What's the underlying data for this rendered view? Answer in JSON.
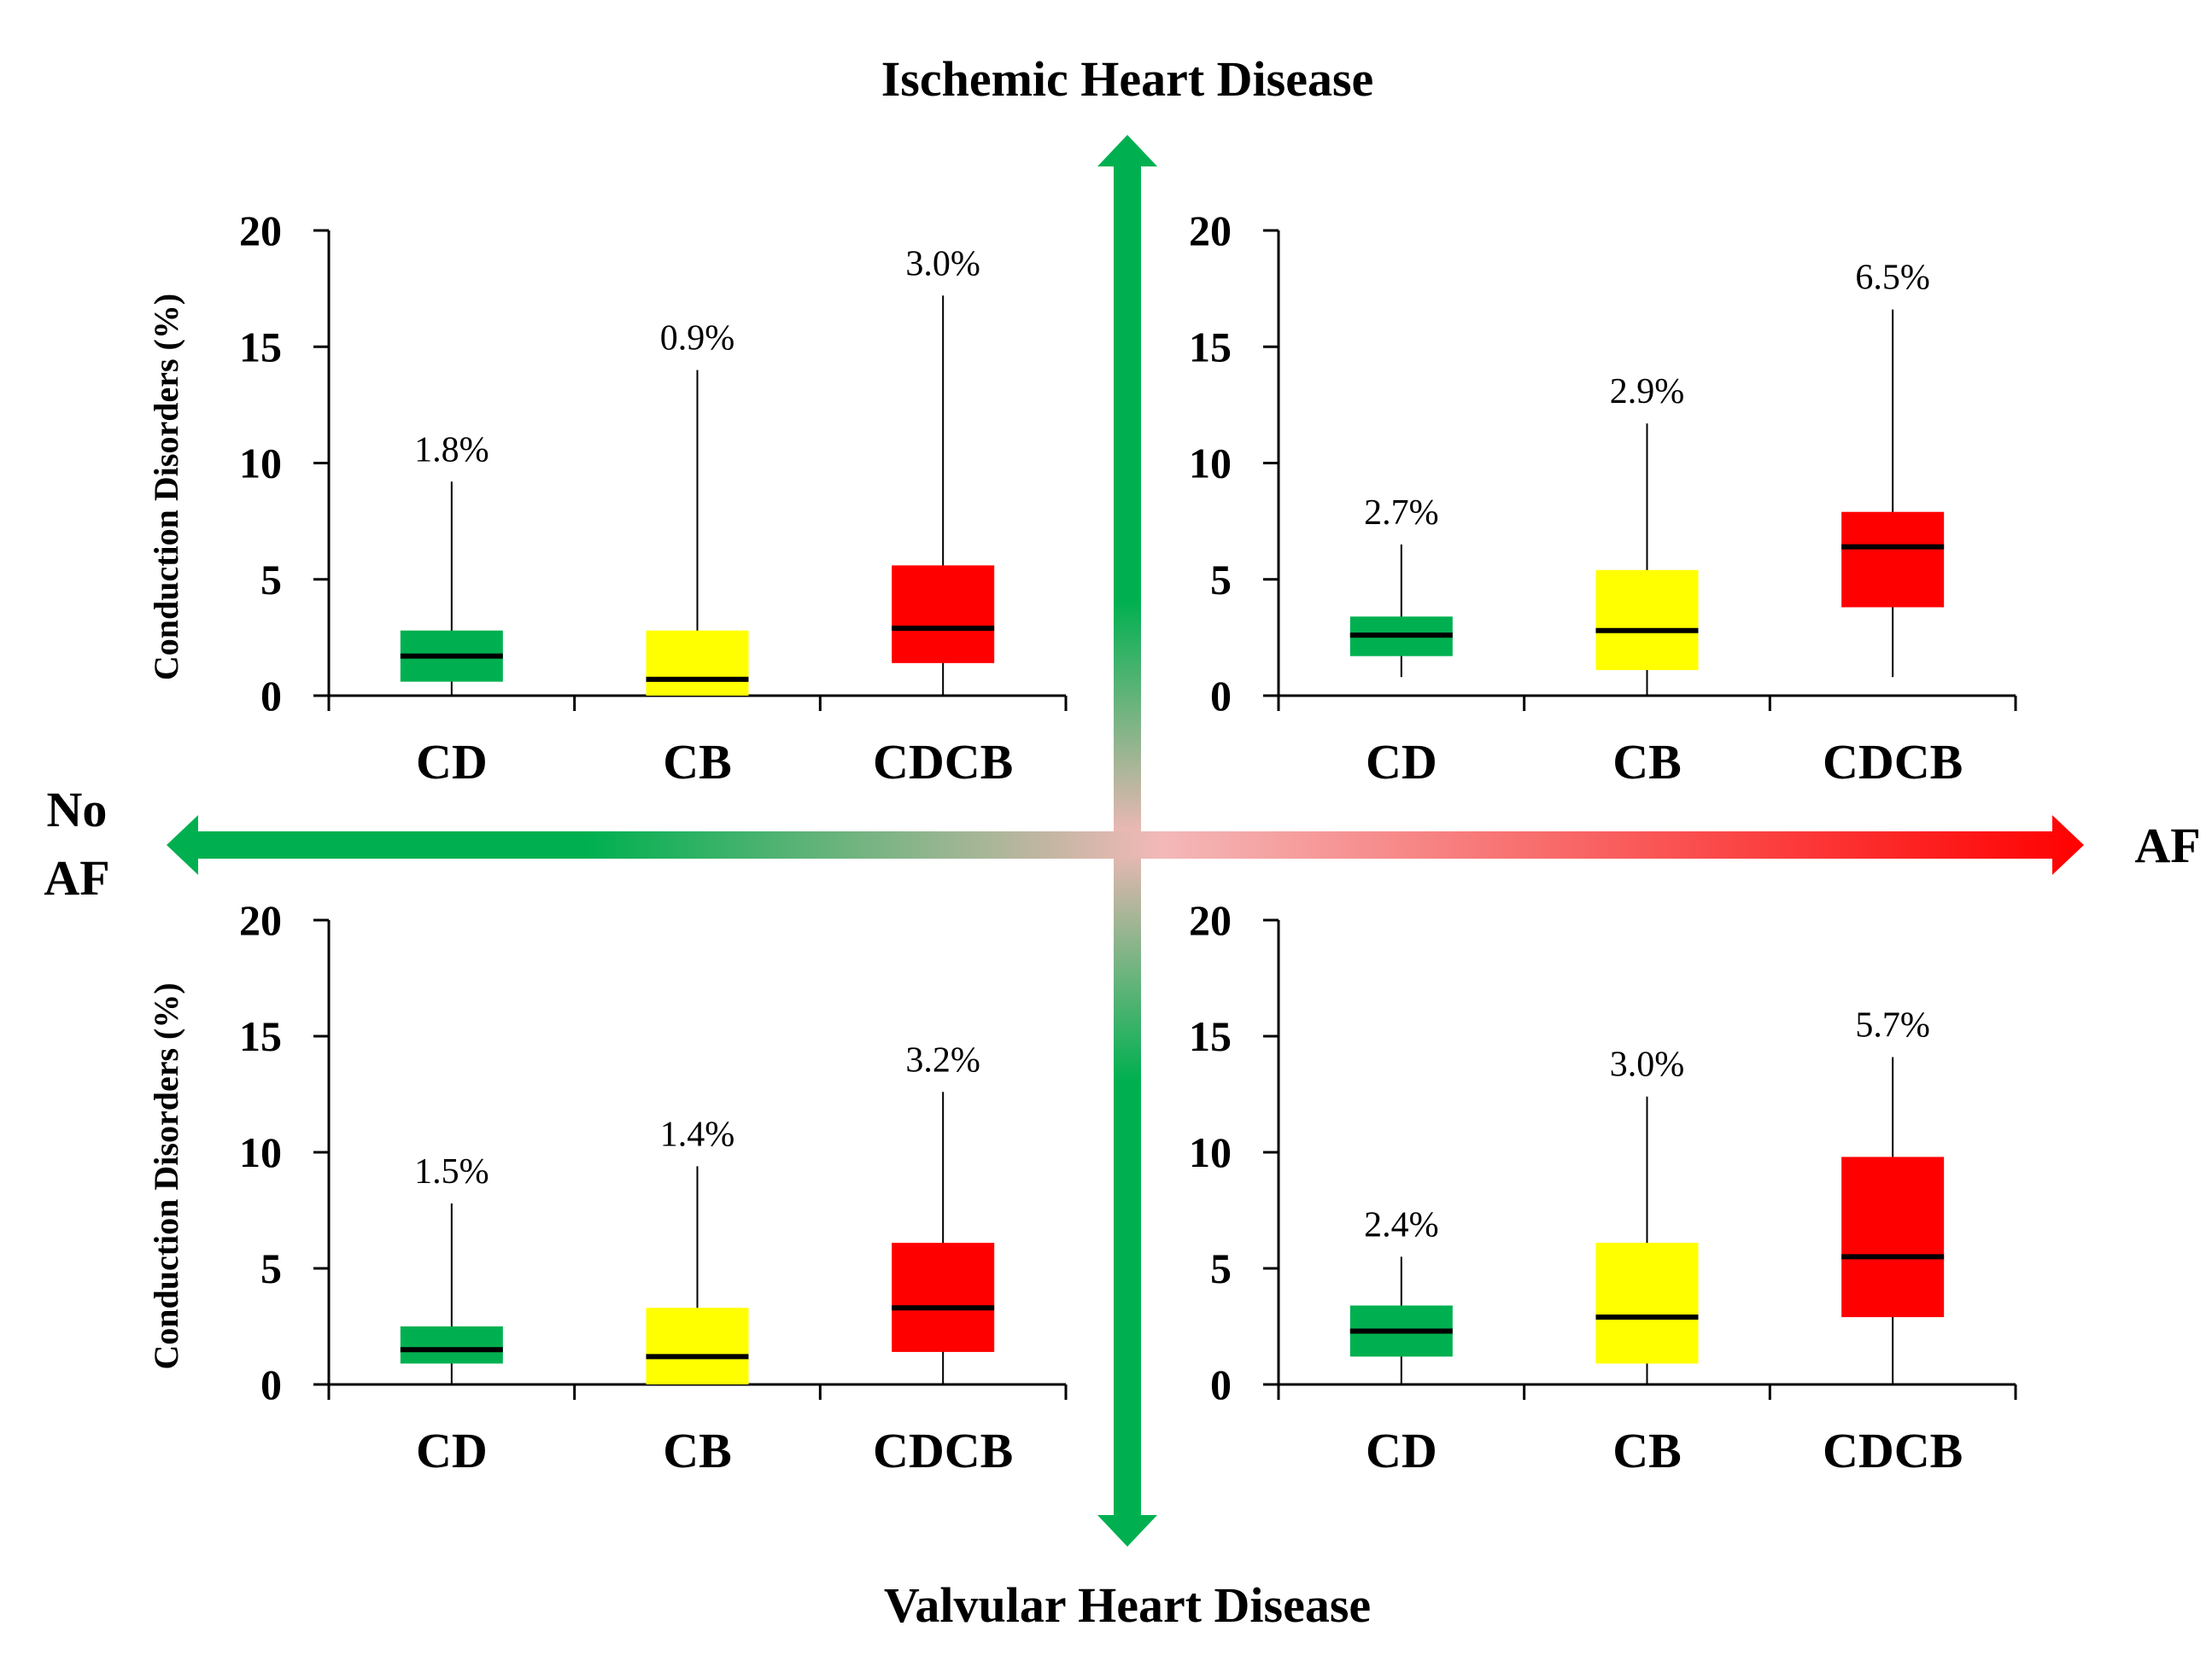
{
  "title_top": "Ischemic Heart Disease",
  "title_bottom": "Valvular Heart Disease",
  "label_left_line1": "No",
  "label_left_line2": "AF",
  "label_right": "AF",
  "colors": {
    "green": "#00b050",
    "yellow": "#ffff00",
    "red": "#ff0000",
    "pink": "#f4b8b8",
    "line": "#000000"
  },
  "chart_data": [
    {
      "type": "box",
      "panel": "top-left",
      "group": "Ischemic Heart Disease / No AF",
      "ylabel": "Conduction Disorders (%)",
      "ylim": [
        0,
        20
      ],
      "yticks": [
        "0",
        "5",
        "10",
        "15",
        "20"
      ],
      "categories": [
        "CD",
        "CB",
        "CDCB"
      ],
      "boxes": [
        {
          "category": "CD",
          "min": 0,
          "q1": 0.6,
          "median": 1.7,
          "q3": 2.8,
          "max": 9.2,
          "label": "1.8%",
          "color": "#00b050"
        },
        {
          "category": "CB",
          "min": 0,
          "q1": 0,
          "median": 0.7,
          "q3": 2.8,
          "max": 14.0,
          "label": "0.9%",
          "color": "#ffff00"
        },
        {
          "category": "CDCB",
          "min": 0,
          "q1": 1.4,
          "median": 2.9,
          "q3": 5.6,
          "max": 17.2,
          "label": "3.0%",
          "color": "#ff0000"
        }
      ]
    },
    {
      "type": "box",
      "panel": "top-right",
      "group": "Ischemic Heart Disease / AF",
      "ylabel": "",
      "ylim": [
        0,
        20
      ],
      "yticks": [
        "0",
        "5",
        "10",
        "15",
        "20"
      ],
      "categories": [
        "CD",
        "CB",
        "CDCB"
      ],
      "boxes": [
        {
          "category": "CD",
          "min": 0.8,
          "q1": 1.7,
          "median": 2.6,
          "q3": 3.4,
          "max": 6.5,
          "label": "2.7%",
          "color": "#00b050"
        },
        {
          "category": "CB",
          "min": 0,
          "q1": 1.1,
          "median": 2.8,
          "q3": 5.4,
          "max": 11.7,
          "label": "2.9%",
          "color": "#ffff00"
        },
        {
          "category": "CDCB",
          "min": 0.8,
          "q1": 3.8,
          "median": 6.4,
          "q3": 7.9,
          "max": 16.6,
          "label": "6.5%",
          "color": "#ff0000"
        }
      ]
    },
    {
      "type": "box",
      "panel": "bottom-left",
      "group": "Valvular Heart Disease / No AF",
      "ylabel": "Conduction Disorders (%)",
      "ylim": [
        0,
        20
      ],
      "yticks": [
        "0",
        "5",
        "10",
        "15",
        "20"
      ],
      "categories": [
        "CD",
        "CB",
        "CDCB"
      ],
      "boxes": [
        {
          "category": "CD",
          "min": 0,
          "q1": 0.9,
          "median": 1.5,
          "q3": 2.5,
          "max": 7.8,
          "label": "1.5%",
          "color": "#00b050"
        },
        {
          "category": "CB",
          "min": 0,
          "q1": 0,
          "median": 1.2,
          "q3": 3.3,
          "max": 9.4,
          "label": "1.4%",
          "color": "#ffff00"
        },
        {
          "category": "CDCB",
          "min": 0,
          "q1": 1.4,
          "median": 3.3,
          "q3": 6.1,
          "max": 12.6,
          "label": "3.2%",
          "color": "#ff0000"
        }
      ]
    },
    {
      "type": "box",
      "panel": "bottom-right",
      "group": "Valvular Heart Disease / AF",
      "ylabel": "",
      "ylim": [
        0,
        20
      ],
      "yticks": [
        "0",
        "5",
        "10",
        "15",
        "20"
      ],
      "categories": [
        "CD",
        "CB",
        "CDCB"
      ],
      "boxes": [
        {
          "category": "CD",
          "min": 0,
          "q1": 1.2,
          "median": 2.3,
          "q3": 3.4,
          "max": 5.5,
          "label": "2.4%",
          "color": "#00b050"
        },
        {
          "category": "CB",
          "min": 0,
          "q1": 0.9,
          "median": 2.9,
          "q3": 6.1,
          "max": 12.4,
          "label": "3.0%",
          "color": "#ffff00"
        },
        {
          "category": "CDCB",
          "min": 0,
          "q1": 2.9,
          "median": 5.5,
          "q3": 9.8,
          "max": 14.1,
          "label": "5.7%",
          "color": "#ff0000"
        }
      ]
    }
  ]
}
